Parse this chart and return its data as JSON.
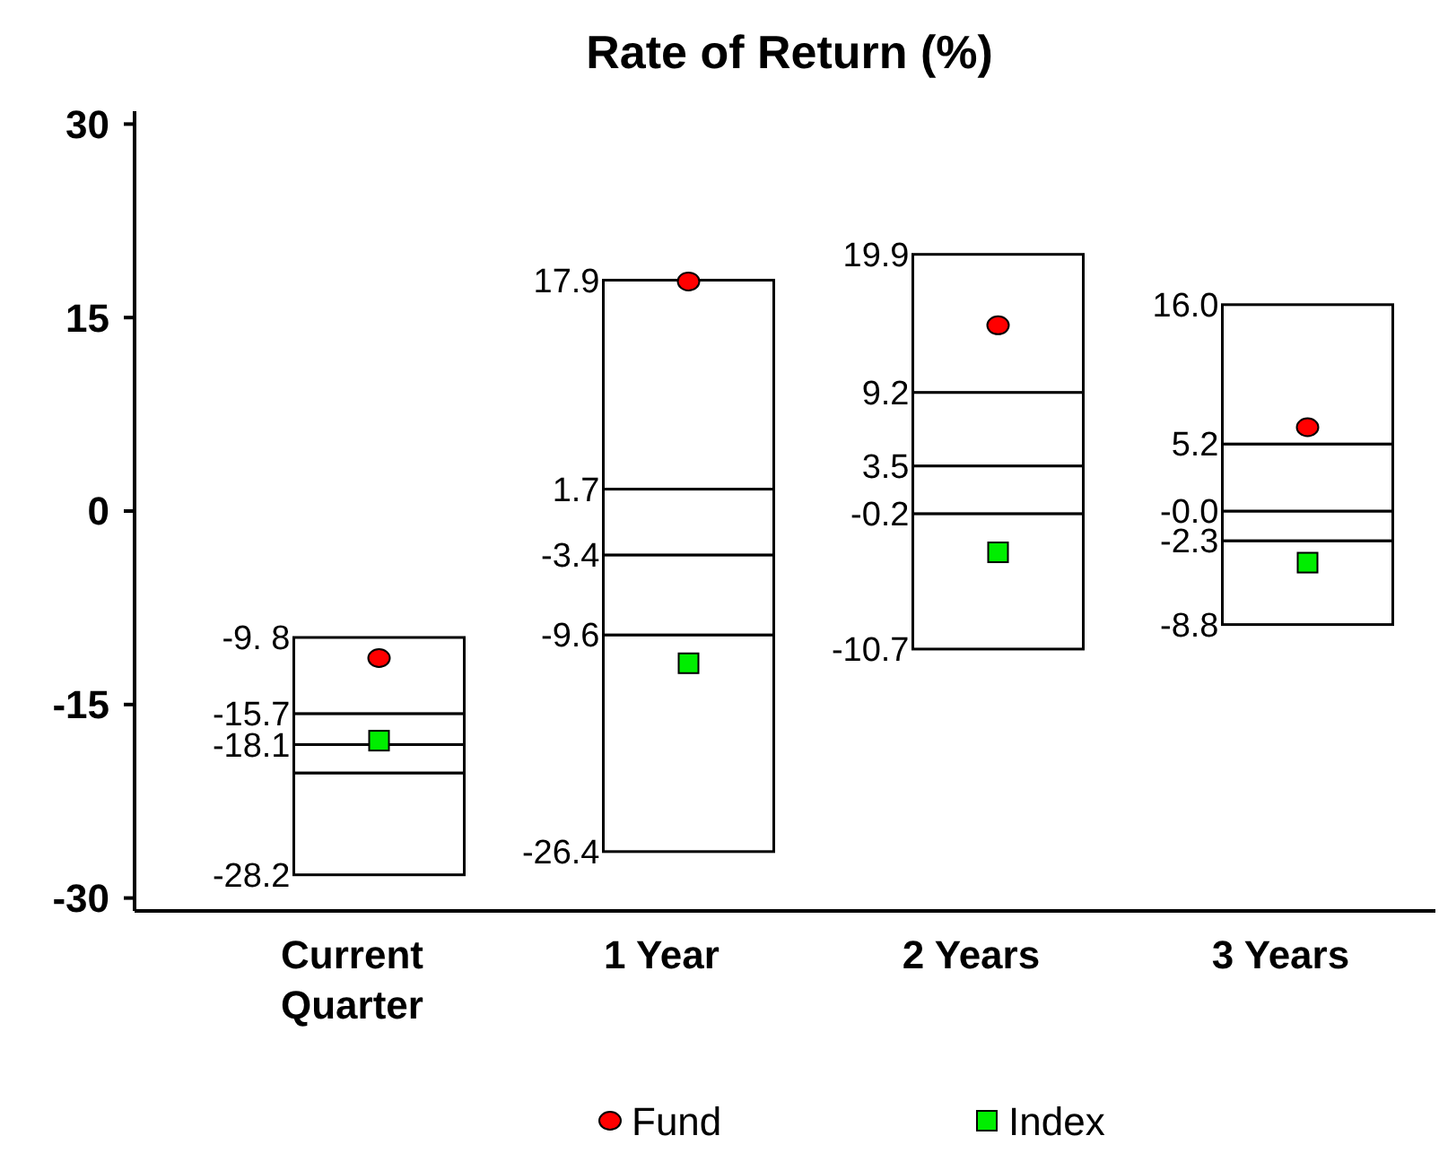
{
  "chart_data": {
    "type": "bar",
    "title": "Rate of Return (%)",
    "categories": [
      "Current Quarter",
      "1 Year",
      "2 Years",
      "3 Years"
    ],
    "series": [
      {
        "color": "#ffffff",
        "base": [
          -28.2,
          -26.4,
          -10.7,
          -8.8
        ],
        "values": [
          7.9,
          16.8,
          10.5,
          6.5
        ]
      },
      {
        "color": "#ffffff",
        "base": [
          -20.3,
          -9.6,
          -0.2,
          -2.3
        ],
        "values": [
          2.2,
          6.2,
          3.7,
          2.3
        ]
      },
      {
        "color": "#ffffff",
        "base": [
          -18.1,
          -3.4,
          3.5,
          0
        ],
        "values": [
          2.4,
          5.1,
          5.7,
          5.2
        ]
      },
      {
        "color": "#ffffff",
        "base": [
          -15.7,
          1.7,
          9.2,
          5.2
        ],
        "values": [
          5.9,
          16.2,
          10.7,
          10.8
        ]
      },
      {
        "name": "Fund",
        "type": "scatter",
        "marker": "circle",
        "color": "#ff0000",
        "x": [
          "Current Quarter",
          "1 Year",
          "2 Years",
          "3 Years"
        ],
        "values": [
          -11.4,
          17.8,
          14.4,
          6.5
        ]
      },
      {
        "name": "Index",
        "type": "scatter",
        "marker": "square",
        "color": "#00ee00",
        "x": [
          "Current Quarter",
          "1 Year",
          "2 Years",
          "3 Years"
        ],
        "values": [
          -17.8,
          -11.8,
          -3.2,
          -4.0
        ]
      }
    ],
    "annotations": [
      {
        "text": "-9. 8",
        "x": "Current Quarter",
        "y": -9.8
      },
      {
        "text": "-15.7",
        "x": "Current Quarter",
        "y": -15.7
      },
      {
        "text": "-18.1",
        "x": "Current Quarter",
        "y": -18.1
      },
      {
        "text": "-28.2",
        "x": "Current Quarter",
        "y": -28.2
      },
      {
        "text": "17.9",
        "x": "1 Year",
        "y": 17.9
      },
      {
        "text": "1.7",
        "x": "1 Year",
        "y": 1.7
      },
      {
        "text": "-3.4",
        "x": "1 Year",
        "y": -3.4
      },
      {
        "text": "-9.6",
        "x": "1 Year",
        "y": -9.6
      },
      {
        "text": "-26.4",
        "x": "1 Year",
        "y": -26.4
      },
      {
        "text": "19.9",
        "x": "2 Years",
        "y": 19.9
      },
      {
        "text": "9.2",
        "x": "2 Years",
        "y": 9.2
      },
      {
        "text": "3.5",
        "x": "2 Years",
        "y": 3.5
      },
      {
        "text": "-0.2",
        "x": "2 Years",
        "y": -0.2
      },
      {
        "text": "-10.7",
        "x": "2 Years",
        "y": -10.7
      },
      {
        "text": "16.0",
        "x": "3 Years",
        "y": 16.0
      },
      {
        "text": "5.2",
        "x": "3 Years",
        "y": 5.2
      },
      {
        "text": "-0.0",
        "x": "3 Years",
        "y": 0
      },
      {
        "text": "-2.3",
        "x": "3 Years",
        "y": -2.3
      },
      {
        "text": "-8.8",
        "x": "3 Years",
        "y": -8.8
      }
    ],
    "ylim": [
      -31,
      31
    ],
    "yticks": [
      -30,
      -15,
      0,
      15,
      30
    ],
    "grid": false,
    "legend": "bottom"
  }
}
